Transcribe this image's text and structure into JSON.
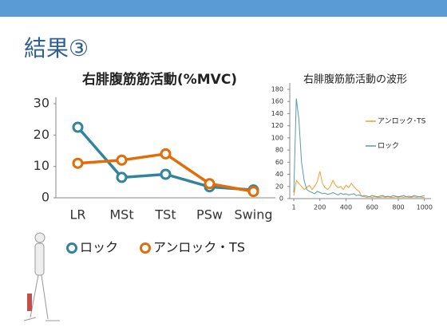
{
  "header": {
    "title": "結果③"
  },
  "chart_data": [
    {
      "type": "line",
      "title": "右腓腹筋筋活動(%MVC)",
      "categories": [
        "LR",
        "MSt",
        "TSt",
        "PSw",
        "Swing"
      ],
      "series": [
        {
          "name": "ロック",
          "color": "#31849b",
          "values": [
            22.5,
            6.5,
            7.5,
            3.5,
            2.5
          ]
        },
        {
          "name": "アンロック・TS",
          "color": "#e36c09",
          "values": [
            11,
            12,
            14,
            4.5,
            2
          ]
        }
      ],
      "ylim": [
        0,
        30
      ],
      "yticks": [
        0,
        10,
        20,
        30
      ],
      "markers": true
    },
    {
      "type": "line",
      "title": "右腓腹筋筋活動の波形",
      "x": [
        1,
        20,
        40,
        60,
        80,
        100,
        120,
        140,
        160,
        180,
        200,
        220,
        240,
        260,
        280,
        300,
        320,
        340,
        360,
        380,
        400,
        420,
        440,
        460,
        480,
        500,
        520,
        540,
        560,
        580,
        600,
        620,
        640,
        660,
        680,
        700,
        720,
        740,
        760,
        780,
        800,
        820,
        840,
        860,
        880,
        900,
        920,
        940,
        960,
        980,
        1000
      ],
      "series": [
        {
          "name": "アンロック･TS",
          "color": "#f0a030",
          "values": [
            5,
            30,
            25,
            20,
            15,
            18,
            22,
            15,
            20,
            28,
            45,
            25,
            18,
            15,
            20,
            30,
            22,
            18,
            20,
            15,
            22,
            18,
            25,
            20,
            15,
            12,
            4,
            3,
            2,
            3,
            2,
            3,
            2,
            2,
            3,
            2,
            3,
            2,
            2,
            3,
            2,
            3,
            2,
            3,
            2,
            2,
            3,
            2,
            3,
            2,
            2
          ]
        },
        {
          "name": "ロック",
          "color": "#5a9aa8",
          "values": [
            10,
            165,
            130,
            60,
            30,
            15,
            12,
            10,
            8,
            12,
            10,
            8,
            9,
            7,
            8,
            10,
            8,
            6,
            9,
            7,
            8,
            6,
            7,
            8,
            5,
            6,
            4,
            5,
            4,
            3,
            5,
            4,
            3,
            4,
            5,
            3,
            4,
            3,
            5,
            4,
            3,
            4,
            5,
            3,
            4,
            3,
            5,
            4,
            3,
            4,
            5
          ]
        }
      ],
      "xlim": [
        -30,
        1050
      ],
      "xticks": [
        1,
        200,
        400,
        600,
        800,
        1000
      ],
      "ylim": [
        0,
        180
      ],
      "yticks": [
        0,
        20,
        40,
        60,
        80,
        100,
        120,
        140,
        160,
        180
      ],
      "markers": false
    }
  ]
}
